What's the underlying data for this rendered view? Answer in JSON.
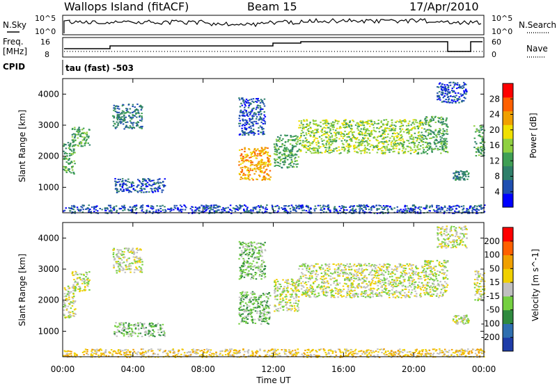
{
  "header": {
    "station": "Wallops Island (fitACF)",
    "beam": "Beam 15",
    "date": "17/Apr/2010"
  },
  "panels": {
    "nsky_label": "N.Sky",
    "nsky_top": "10^5",
    "nsky_bottom": "10^0",
    "nsearch_label": "N.Search",
    "nsearch_top": "10^5",
    "nsearch_bottom": "10^0",
    "freq_label": "Freq.",
    "freq_unit": "[MHz]",
    "freq_top": "16",
    "freq_bottom": "8",
    "nave_label": "Nave",
    "nave_top": "60",
    "nave_bottom": "0",
    "cpid_label": "CPID",
    "cpid_text": "tau (fast) -503"
  },
  "colors": {
    "power_scale": [
      "#0000ff",
      "#1f4fb0",
      "#2f7f6a",
      "#3f9f55",
      "#8fd040",
      "#f0e000",
      "#f0a000",
      "#ff6000",
      "#ff0000"
    ],
    "velocity_scale": [
      "#1e3ca8",
      "#2f6fb0",
      "#2f8a3f",
      "#74d040",
      "#c0c0c0",
      "#f0d000",
      "#f0a000",
      "#ff6000",
      "#ff0000"
    ],
    "echo_gray": "#c0c0c0"
  },
  "chart_data": [
    {
      "type": "heatmap",
      "name": "Power",
      "xlabel": "Time UT",
      "ylabel": "Slant Range [km]",
      "colorbar_label": "Power [dB]",
      "x_ticks": [
        "00:00",
        "04:00",
        "08:00",
        "12:00",
        "16:00",
        "20:00",
        "00:00"
      ],
      "xlim": [
        0,
        24
      ],
      "y_ticks": [
        1000,
        2000,
        3000,
        4000
      ],
      "ylim": [
        180,
        4500
      ],
      "colorbar_ticks": [
        4,
        8,
        12,
        16,
        20,
        24,
        28
      ],
      "colorbar_range": [
        0,
        32
      ],
      "echo_regions": [
        {
          "t0": 0.0,
          "t1": 0.7,
          "r0": 1450,
          "r1": 2500,
          "level": 3
        },
        {
          "t0": 0.5,
          "t1": 1.5,
          "r0": 2300,
          "r1": 2950,
          "level": 3
        },
        {
          "t0": 2.8,
          "t1": 4.5,
          "r0": 2900,
          "r1": 3700,
          "level": 2
        },
        {
          "t0": 2.9,
          "t1": 5.8,
          "r0": 850,
          "r1": 1300,
          "level": 1
        },
        {
          "t0": 10.0,
          "t1": 11.8,
          "r0": 1250,
          "r1": 2300,
          "level": 6
        },
        {
          "t0": 10.0,
          "t1": 11.5,
          "r0": 2700,
          "r1": 3900,
          "level": 1
        },
        {
          "t0": 12.0,
          "t1": 13.4,
          "r0": 1650,
          "r1": 2700,
          "level": 3
        },
        {
          "t0": 13.4,
          "t1": 20.5,
          "r0": 2100,
          "r1": 3200,
          "level": 4
        },
        {
          "t0": 20.5,
          "t1": 21.9,
          "r0": 2100,
          "r1": 3300,
          "level": 3
        },
        {
          "t0": 21.3,
          "t1": 23.0,
          "r0": 3700,
          "r1": 4400,
          "level": 1
        },
        {
          "t0": 22.2,
          "t1": 23.1,
          "r0": 1250,
          "r1": 1550,
          "level": 2
        },
        {
          "t0": 23.4,
          "t1": 24.0,
          "r0": 2000,
          "r1": 3000,
          "level": 3
        },
        {
          "t0": 0.0,
          "t1": 24.0,
          "r0": 180,
          "r1": 450,
          "level": 1
        }
      ]
    },
    {
      "type": "heatmap",
      "name": "Velocity",
      "xlabel": "Time UT",
      "ylabel": "Slant Range [km]",
      "colorbar_label": "Velocity [m s^-1]",
      "x_ticks": [
        "00:00",
        "04:00",
        "08:00",
        "12:00",
        "16:00",
        "20:00",
        "00:00"
      ],
      "xlim": [
        0,
        24
      ],
      "y_ticks": [
        1000,
        2000,
        3000,
        4000
      ],
      "ylim": [
        180,
        4500
      ],
      "colorbar_ticks": [
        "200",
        "100",
        "50",
        "15",
        "-15",
        "-50",
        "-100",
        "-200"
      ],
      "echo_regions": [
        {
          "t0": 0.0,
          "t1": 0.7,
          "r0": 1450,
          "r1": 2500,
          "level": 4
        },
        {
          "t0": 0.5,
          "t1": 1.5,
          "r0": 2300,
          "r1": 2950,
          "level": 4
        },
        {
          "t0": 2.8,
          "t1": 4.5,
          "r0": 2900,
          "r1": 3700,
          "level": 4
        },
        {
          "t0": 2.9,
          "t1": 5.8,
          "r0": 850,
          "r1": 1300,
          "level": 3
        },
        {
          "t0": 10.0,
          "t1": 11.8,
          "r0": 1250,
          "r1": 2300,
          "level": 3
        },
        {
          "t0": 10.0,
          "t1": 11.5,
          "r0": 2700,
          "r1": 3900,
          "level": 3
        },
        {
          "t0": 12.0,
          "t1": 13.4,
          "r0": 1650,
          "r1": 2700,
          "level": 4
        },
        {
          "t0": 13.4,
          "t1": 20.5,
          "r0": 2100,
          "r1": 3200,
          "level": 4
        },
        {
          "t0": 20.5,
          "t1": 21.9,
          "r0": 2100,
          "r1": 3300,
          "level": 4
        },
        {
          "t0": 21.3,
          "t1": 23.0,
          "r0": 3700,
          "r1": 4400,
          "level": 4
        },
        {
          "t0": 22.2,
          "t1": 23.1,
          "r0": 1250,
          "r1": 1550,
          "level": 4
        },
        {
          "t0": 23.4,
          "t1": 24.0,
          "r0": 2000,
          "r1": 3000,
          "level": 4
        },
        {
          "t0": 0.0,
          "t1": 24.0,
          "r0": 180,
          "r1": 450,
          "level": 5
        }
      ]
    }
  ]
}
